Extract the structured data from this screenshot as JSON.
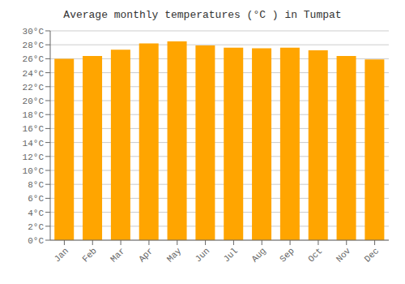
{
  "chart_data": {
    "type": "bar",
    "title": "Average monthly temperatures (°C ) in Tumpat",
    "categories": [
      "Jan",
      "Feb",
      "Mar",
      "Apr",
      "May",
      "Jun",
      "Jul",
      "Aug",
      "Sep",
      "Oct",
      "Nov",
      "Dec"
    ],
    "values": [
      26.0,
      26.4,
      27.3,
      28.2,
      28.5,
      27.9,
      27.6,
      27.5,
      27.6,
      27.2,
      26.4,
      25.9
    ],
    "color": "#FFA500",
    "ylim": [
      0,
      30
    ],
    "yticks": [
      {
        "value": 0,
        "label": "0°C"
      },
      {
        "value": 2,
        "label": "2°C"
      },
      {
        "value": 4,
        "label": "4°C"
      },
      {
        "value": 6,
        "label": "6°C"
      },
      {
        "value": 8,
        "label": "8°C"
      },
      {
        "value": 10,
        "label": "10°C"
      },
      {
        "value": 12,
        "label": "12°C"
      },
      {
        "value": 14,
        "label": "14°C"
      },
      {
        "value": 16,
        "label": "16°C"
      },
      {
        "value": 18,
        "label": "18°C"
      },
      {
        "value": 20,
        "label": "20°C"
      },
      {
        "value": 22,
        "label": "22°C"
      },
      {
        "value": 24,
        "label": "24°C"
      },
      {
        "value": 26,
        "label": "26°C"
      },
      {
        "value": 28,
        "label": "28°C"
      },
      {
        "value": 30,
        "label": "30°C"
      }
    ],
    "grid": true
  }
}
